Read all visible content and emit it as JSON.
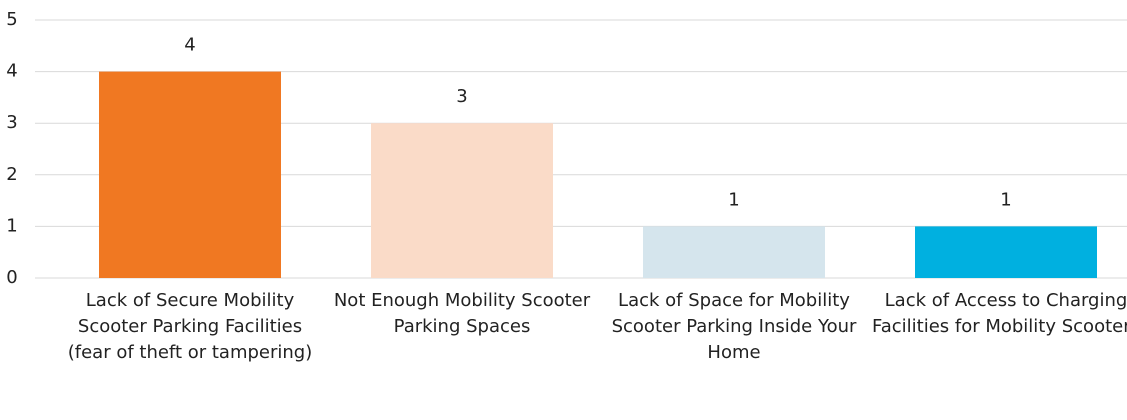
{
  "chart_data": {
    "type": "bar",
    "categories": [
      "Lack of Secure Mobility Scooter Parking Facilities (fear of theft or tampering)",
      "Not Enough Mobility Scooter Parking Spaces",
      "Lack of Space for Mobility Scooter Parking Inside Your Home",
      "Lack of Access to Charging Facilities for Mobility Scooters"
    ],
    "values": [
      4,
      3,
      1,
      1
    ],
    "colors": [
      "#f07822",
      "#fadbc8",
      "#d5e5ed",
      "#00b0e0"
    ],
    "ylim": [
      0,
      5
    ],
    "yticks": [
      0,
      1,
      2,
      3,
      4,
      5
    ],
    "grid": true
  }
}
